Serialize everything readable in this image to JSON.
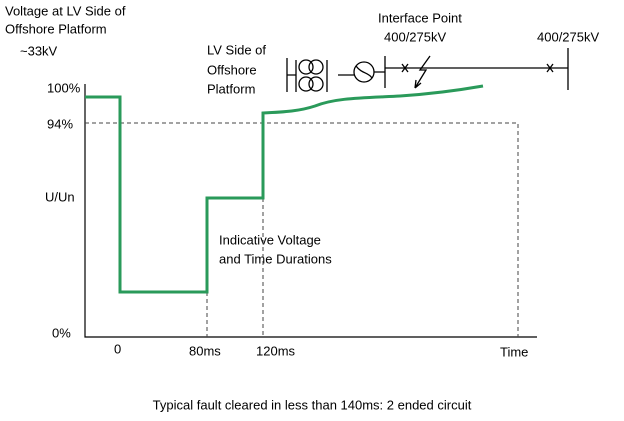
{
  "title": [
    "Voltage at LV Side of",
    "Offshore Platform",
    "~33kV"
  ],
  "interface": [
    "Interface Point",
    "400/275kV"
  ],
  "grid_label": "400/275kV",
  "lv_label": [
    "LV Side of",
    "Offshore",
    "Platform"
  ],
  "y_labels": [
    "100%",
    "94%",
    "U/Un",
    "0%"
  ],
  "x_labels": [
    "0",
    "80ms",
    "120ms",
    "Time"
  ],
  "note": [
    "Indicative Voltage",
    "and Time Durations"
  ],
  "caption": "Typical fault cleared in less than 140ms: 2 ended circuit"
}
